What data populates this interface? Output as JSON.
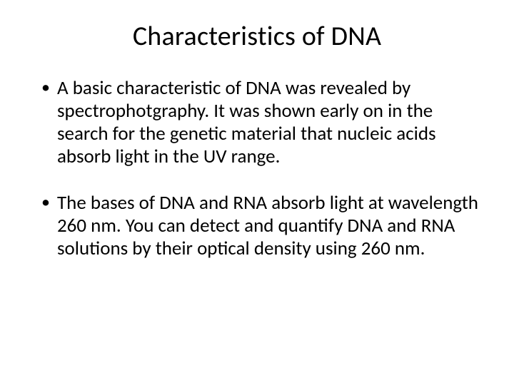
{
  "title": "Characteristics of DNA",
  "bullets": [
    "A basic characteristic of DNA was revealed by spectrophotgraphy.  It was shown early on in the search for the genetic material that nucleic acids absorb light in the UV range.",
    "The bases of DNA and RNA absorb light at wavelength 260 nm.  You can detect and quantify DNA and RNA solutions by their optical density using 260 nm."
  ],
  "colors": {
    "background": "#ffffff",
    "text": "#000000"
  },
  "typography": {
    "title_fontsize": 38,
    "body_fontsize": 27,
    "font_family": "Calibri"
  }
}
